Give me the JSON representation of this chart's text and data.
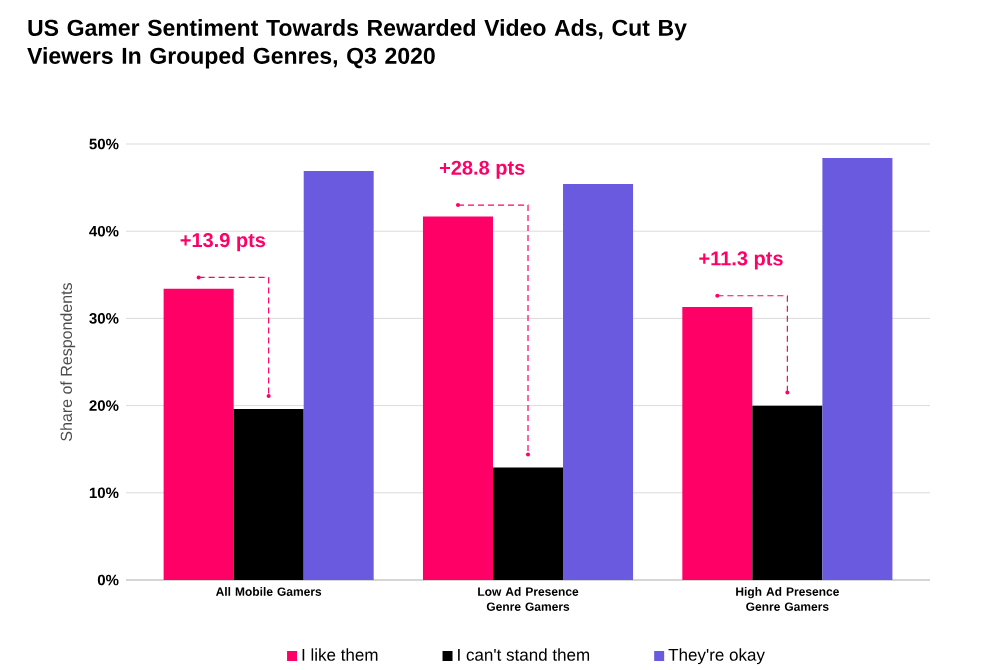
{
  "chart_data": {
    "type": "bar",
    "title": "US Gamer Sentiment Towards Rewarded Video Ads, Cut By Viewers In Grouped Genres, Q3 2020",
    "ylabel": "Share of Respondents",
    "categories": [
      "All Mobile Gamers",
      "Low Ad Presence Genre Gamers",
      "High Ad Presence Genre Gamers"
    ],
    "series": [
      {
        "name": "I like them",
        "color": "#ff0066",
        "values": [
          33.4,
          41.7,
          31.3
        ]
      },
      {
        "name": "I can't stand them",
        "color": "#000000",
        "values": [
          19.6,
          12.9,
          20.0
        ]
      },
      {
        "name": "They're okay",
        "color": "#6a5ae0",
        "values": [
          46.9,
          45.4,
          48.4
        ]
      }
    ],
    "ylim": [
      0,
      50
    ],
    "yticks": [
      {
        "value": 0,
        "label": "0%"
      },
      {
        "value": 10,
        "label": "10%"
      },
      {
        "value": 20,
        "label": "20%"
      },
      {
        "value": 30,
        "label": "30%"
      },
      {
        "value": 40,
        "label": "40%"
      },
      {
        "value": 50,
        "label": "50%"
      }
    ],
    "grid": "y",
    "legend": "bottom",
    "annotations": [
      "+13.9 pts",
      "+28.8 pts",
      "+11.3 pts"
    ]
  }
}
